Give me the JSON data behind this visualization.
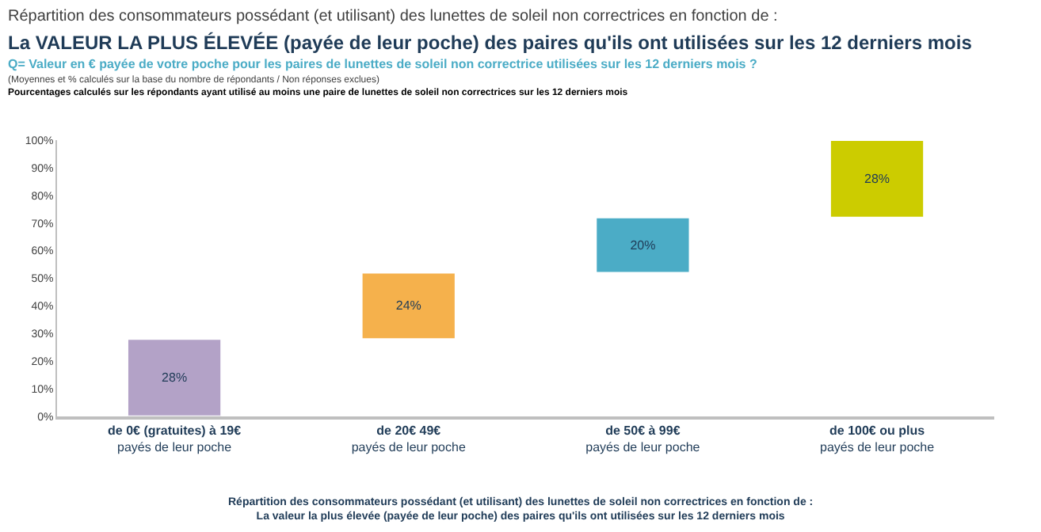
{
  "chart_data": {
    "type": "bar",
    "title": "Répartition des consommateurs possédant (et utilisant) des lunettes de soleil non correctrices en fonction de :",
    "subtitle": "La VALEUR LA PLUS ÉLEVÉE (payée de leur poche) des paires qu'ils ont utilisées sur les 12 derniers mois",
    "annotations": [
      "Q= Valeur en € payée de votre poche pour les paires de lunettes de soleil non correctrice utilisées sur les 12 derniers mois ?",
      "(Moyennes et % calculés sur la base du nombre de répondants / Non réponses exclues)",
      "Pourcentages calculés sur les répondants ayant utilisé au moins une paire de lunettes de soleil non correctrices sur les 12 derniers mois",
      "Répartition des consommateurs possédant (et utilisant) des lunettes de soleil non correctrices en fonction de :\nLa valeur la plus élevée (payée de leur poche) des paires qu'ils ont utilisées sur les 12 derniers mois"
    ],
    "categories": [
      "de 0€ (gratuites) à 19€\npayés de leur poche",
      "de 20€ 49€\npayés de leur poche",
      "de 50€ à 99€\npayés de leur poche",
      "de 100€ ou plus\npayés de leur poche"
    ],
    "values": [
      28,
      24,
      20,
      28
    ],
    "base": [
      0,
      28,
      52,
      72
    ],
    "colors": [
      "#b3a2c7",
      "#f5b14c",
      "#4bacc6",
      "#cccc00"
    ],
    "value_labels": [
      "28%",
      "24%",
      "20%",
      "28%"
    ],
    "ylim": [
      0,
      100
    ],
    "yticks": [
      {
        "value": 0,
        "label": "0%"
      },
      {
        "value": 10,
        "label": "10%"
      },
      {
        "value": 20,
        "label": "20%"
      },
      {
        "value": 30,
        "label": "30%"
      },
      {
        "value": 40,
        "label": "40%"
      },
      {
        "value": 50,
        "label": "50%"
      },
      {
        "value": 60,
        "label": "60%"
      },
      {
        "value": 70,
        "label": "70%"
      },
      {
        "value": 80,
        "label": "80%"
      },
      {
        "value": 90,
        "label": "90%"
      },
      {
        "value": 100,
        "label": "100%"
      }
    ],
    "tick_labels": "xy"
  }
}
